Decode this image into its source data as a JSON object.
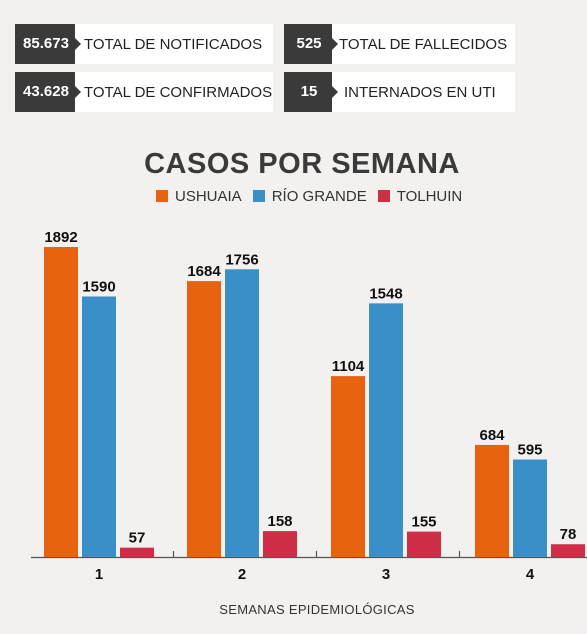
{
  "stats": [
    {
      "value": "85.673",
      "label": "TOTAL DE NOTIFICADOS"
    },
    {
      "value": "525",
      "label": "TOTAL DE FALLECIDOS"
    },
    {
      "value": "43.628",
      "label": "TOTAL DE CONFIRMADOS"
    },
    {
      "value": "15",
      "label": "INTERNADOS EN UTI"
    }
  ],
  "chart_data": {
    "type": "bar",
    "title": "CASOS POR SEMANA",
    "xlabel": "SEMANAS EPIDEMIOLÓGICAS",
    "ylabel": "",
    "categories": [
      "1",
      "2",
      "3",
      "4"
    ],
    "series": [
      {
        "name": "USHUAIA",
        "color": "#e8630f",
        "values": [
          1892,
          1684,
          1104,
          684
        ]
      },
      {
        "name": "RÍO GRANDE",
        "color": "#3a8fc8",
        "values": [
          1590,
          1756,
          1548,
          595
        ]
      },
      {
        "name": "TOLHUIN",
        "color": "#cf2f46",
        "values": [
          57,
          158,
          155,
          78
        ]
      }
    ],
    "ylim": [
      0,
      1892
    ],
    "grid": false,
    "legend": "top-center"
  }
}
